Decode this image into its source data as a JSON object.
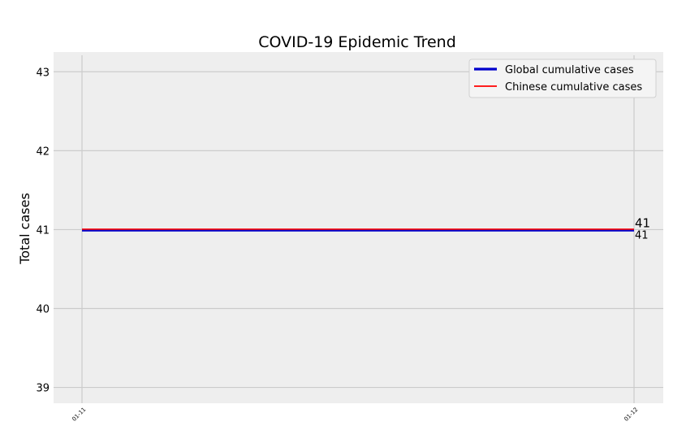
{
  "chart_data": {
    "type": "line",
    "title": "COVID-19 Epidemic Trend",
    "xlabel": "",
    "ylabel": "Total cases",
    "categories": [
      "01-11",
      "01-12"
    ],
    "ylim": [
      38.8,
      43.25
    ],
    "yticks": [
      39,
      40,
      41,
      42,
      43
    ],
    "grid": true,
    "legend_position": "top-right",
    "series": [
      {
        "name": "Global cumulative cases",
        "values": [
          41,
          41
        ],
        "color": "#0000cc",
        "end_label": "41"
      },
      {
        "name": "Chinese cumulative cases",
        "values": [
          41,
          41
        ],
        "color": "#ff0000",
        "end_label": "41"
      }
    ]
  },
  "colors": {
    "plot_background": "#eeeeee",
    "grid": "#cbcbcb",
    "legend_background": "#f4f4f4",
    "legend_border": "#d0d0d0"
  }
}
